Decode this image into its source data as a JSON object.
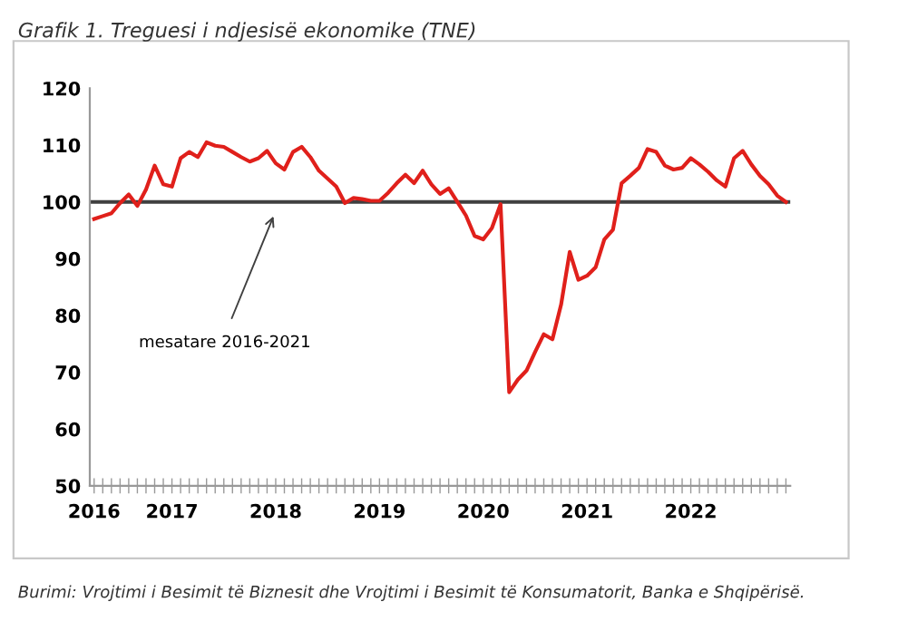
{
  "chart_data": {
    "type": "line",
    "title": "Grafik 1. Treguesi i ndjesisë ekonomike (TNE)",
    "categories": [
      "2016",
      null,
      null,
      null,
      null,
      null,
      null,
      null,
      null,
      "2017",
      null,
      null,
      null,
      null,
      null,
      null,
      null,
      null,
      null,
      null,
      null,
      "2018",
      null,
      null,
      null,
      null,
      null,
      null,
      null,
      null,
      null,
      null,
      null,
      "2019",
      null,
      null,
      null,
      null,
      null,
      null,
      null,
      null,
      null,
      null,
      null,
      "2020",
      null,
      null,
      null,
      null,
      null,
      null,
      null,
      null,
      null,
      null,
      null,
      "2021",
      null,
      null,
      null,
      null,
      null,
      null,
      null,
      null,
      null,
      null,
      null,
      "2022",
      null,
      null,
      null,
      null,
      null,
      null,
      null,
      null,
      null,
      null,
      null
    ],
    "series": [
      {
        "color": "#e0201b",
        "values": [
          97.0,
          97.5,
          98.0,
          99.8,
          101.3,
          99.3,
          102.2,
          106.4,
          103.1,
          102.7,
          107.7,
          108.8,
          107.9,
          110.5,
          109.9,
          109.7,
          108.8,
          107.9,
          107.1,
          107.7,
          109.0,
          106.8,
          105.7,
          108.8,
          109.7,
          107.9,
          105.5,
          104.1,
          102.7,
          99.8,
          100.7,
          100.5,
          100.2,
          100.2,
          101.6,
          103.3,
          104.8,
          103.3,
          105.5,
          103.1,
          101.4,
          102.4,
          100.0,
          97.6,
          94.0,
          93.4,
          95.4,
          99.6,
          66.5,
          68.7,
          70.3,
          73.6,
          76.7,
          75.8,
          81.9,
          91.2,
          86.3,
          87.0,
          88.5,
          93.4,
          95.1,
          103.3,
          104.6,
          106.0,
          109.3,
          108.8,
          106.4,
          105.7,
          106.0,
          107.7,
          106.6,
          105.3,
          103.8,
          102.7,
          107.7,
          109.0,
          106.6,
          104.6,
          103.1,
          101.1,
          100.0
        ]
      }
    ],
    "ylim": [
      50,
      120
    ],
    "yticks": [
      50,
      60,
      70,
      80,
      90,
      100,
      110,
      120
    ],
    "ref_lines": [
      {
        "axis": "y",
        "value": 100,
        "color": "#404040"
      }
    ],
    "grid": false,
    "annotations": [
      "mesatare 2016-2021",
      "Burimi: Vrojtimi i Besimit të Biznesit dhe Vrojtimi i Besimit të Konsumatorit, Banka e Shqipërisë."
    ]
  }
}
